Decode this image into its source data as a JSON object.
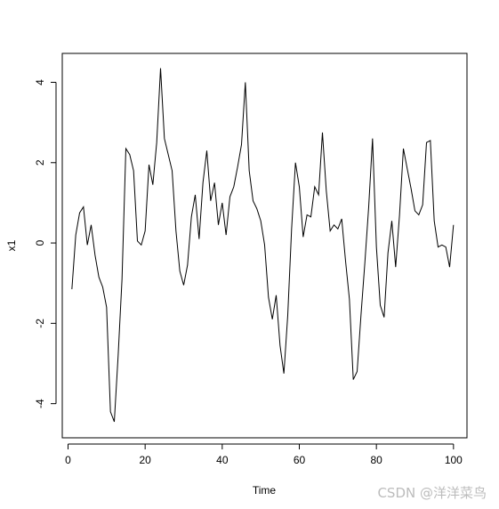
{
  "chart_data": {
    "type": "line",
    "title": "",
    "xlabel": "Time",
    "ylabel": "x1",
    "xlim": [
      -1.5,
      103.5
    ],
    "ylim": [
      -4.85,
      4.72
    ],
    "xticks": [
      0,
      20,
      40,
      60,
      80,
      100
    ],
    "yticks": [
      -4,
      -2,
      0,
      2,
      4
    ],
    "xtick_labels": [
      "0",
      "20",
      "40",
      "60",
      "80",
      "100"
    ],
    "ytick_labels": [
      "-4",
      "-2",
      "0",
      "2",
      "4"
    ],
    "grid": false,
    "line_color": "#000000",
    "series": [
      {
        "x": [
          1,
          2,
          3,
          4,
          5,
          6,
          7,
          8,
          9,
          10,
          11,
          12,
          13,
          14,
          15,
          16,
          17,
          18,
          19,
          20,
          21,
          22,
          23,
          24,
          25,
          26,
          27,
          28,
          29,
          30,
          31,
          32,
          33,
          34,
          35,
          36,
          37,
          38,
          39,
          40,
          41,
          42,
          43,
          44,
          45,
          46,
          47,
          48,
          49,
          50,
          51,
          52,
          53,
          54,
          55,
          56,
          57,
          58,
          59,
          60,
          61,
          62,
          63,
          64,
          65,
          66,
          67,
          68,
          69,
          70,
          71,
          72,
          73,
          74,
          75,
          76,
          77,
          78,
          79,
          80,
          81,
          82,
          83,
          84,
          85,
          86,
          87,
          88,
          89,
          90,
          91,
          92,
          93,
          94,
          95,
          96,
          97,
          98,
          99,
          100
        ],
        "values": [
          -1.15,
          0.2,
          0.75,
          0.9,
          -0.05,
          0.45,
          -0.3,
          -0.85,
          -1.1,
          -1.6,
          -4.2,
          -4.45,
          -2.8,
          -0.9,
          2.35,
          2.2,
          1.8,
          0.05,
          -0.05,
          0.3,
          1.95,
          1.45,
          2.5,
          4.35,
          2.6,
          2.2,
          1.8,
          0.3,
          -0.7,
          -1.05,
          -0.55,
          0.65,
          1.2,
          0.1,
          1.5,
          2.3,
          1.05,
          1.5,
          0.45,
          1.0,
          0.2,
          1.15,
          1.4,
          1.9,
          2.45,
          4.0,
          1.8,
          1.05,
          0.85,
          0.55,
          -0.05,
          -1.35,
          -1.9,
          -1.3,
          -2.55,
          -3.25,
          -1.8,
          0.35,
          2.0,
          1.4,
          0.15,
          0.7,
          0.65,
          1.4,
          1.2,
          2.75,
          1.3,
          0.3,
          0.45,
          0.35,
          0.6,
          -0.45,
          -1.4,
          -3.4,
          -3.2,
          -1.8,
          -0.5,
          0.9,
          2.6,
          -0.1,
          -1.55,
          -1.85,
          -0.25,
          0.55,
          -0.6,
          0.7,
          2.35,
          1.85,
          1.35,
          0.8,
          0.7,
          0.95,
          2.5,
          2.55,
          0.55,
          -0.1,
          -0.05,
          -0.1,
          -0.6,
          0.45
        ]
      }
    ]
  },
  "watermark": "CSDN @洋洋菜鸟"
}
